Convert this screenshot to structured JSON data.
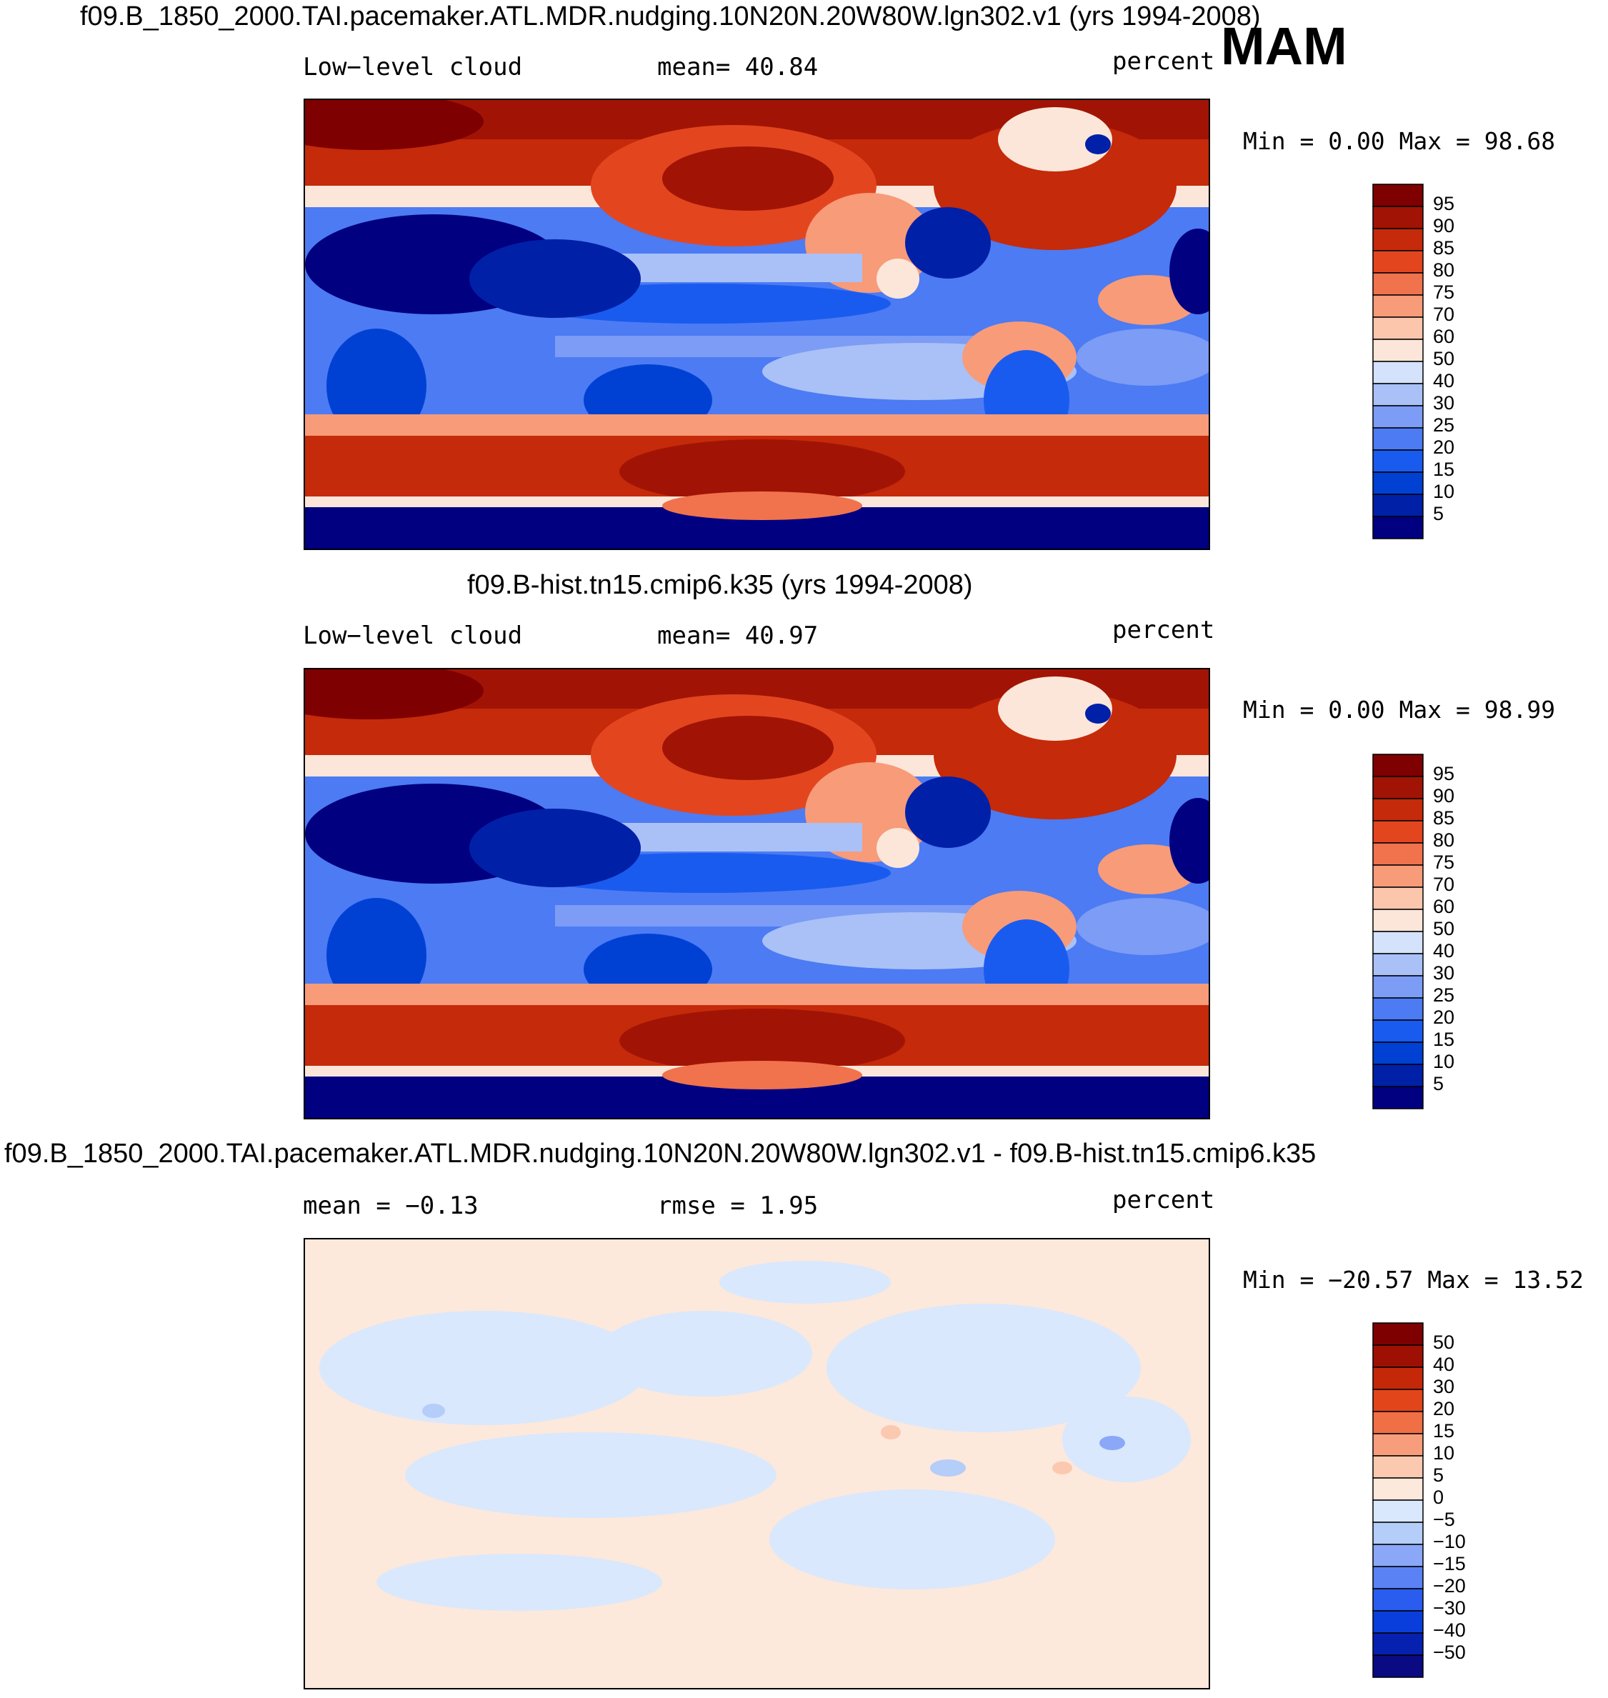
{
  "season": "MAM",
  "colors": {
    "abs": [
      "#000080",
      "#0020a8",
      "#0041d4",
      "#1a5bef",
      "#4c7bf3",
      "#7c9cf5",
      "#a9c1f7",
      "#d4e3fb",
      "#fbe6d9",
      "#fbc6ac",
      "#f89b78",
      "#f0734d",
      "#e3461f",
      "#c52a0a",
      "#a11405",
      "#7f0000"
    ],
    "diff": [
      "#0a0a82",
      "#0620b0",
      "#0a3edc",
      "#2a5cf0",
      "#5a82f4",
      "#8aa8f7",
      "#b4cdf9",
      "#d9e8fc",
      "#fde8dc",
      "#fbc9b0",
      "#f89d7c",
      "#f06f45",
      "#e3451a",
      "#c52808",
      "#9f1004",
      "#7f0000"
    ]
  },
  "panels": [
    {
      "title": "f09.B_1850_2000.TAI.pacemaker.ATL.MDR.nudging.10N20N.20W80W.lgn302.v1 (yrs 1994-2008)",
      "left_label": "Low−level cloud",
      "center_label": "mean=   40.84",
      "right_label": "percent",
      "minmax": "Min =     0.00 Max =   98.68",
      "colorbar_ticks": [
        "95",
        "90",
        "85",
        "80",
        "75",
        "70",
        "60",
        "50",
        "40",
        "30",
        "25",
        "20",
        "15",
        "10",
        "5"
      ]
    },
    {
      "title": "f09.B-hist.tn15.cmip6.k35 (yrs 1994-2008)",
      "left_label": "Low−level cloud",
      "center_label": "mean=   40.97",
      "right_label": "percent",
      "minmax": "Min =     0.00 Max =   98.99",
      "colorbar_ticks": [
        "95",
        "90",
        "85",
        "80",
        "75",
        "70",
        "60",
        "50",
        "40",
        "30",
        "25",
        "20",
        "15",
        "10",
        "5"
      ]
    },
    {
      "title": "f09.B_1850_2000.TAI.pacemaker.ATL.MDR.nudging.10N20N.20W80W.lgn302.v1 - f09.B-hist.tn15.cmip6.k35",
      "left_label": "mean =   −0.13",
      "center_label": "rmse =     1.95",
      "right_label": "percent",
      "minmax": "Min = −20.57  Max =   13.52",
      "colorbar_ticks": [
        "50",
        "40",
        "30",
        "20",
        "15",
        "10",
        "5",
        "0",
        "−5",
        "−10",
        "−15",
        "−20",
        "−30",
        "−40",
        "−50"
      ]
    }
  ],
  "chart_data": [
    {
      "type": "heatmap",
      "title": "f09.B_1850_2000.TAI.pacemaker.ATL.MDR.nudging.10N20N.20W80W.lgn302.v1 (yrs 1994-2008)",
      "variable": "Low-level cloud",
      "units": "percent",
      "season": "MAM",
      "mean": 40.84,
      "min": 0.0,
      "max": 98.68,
      "levels": [
        5,
        10,
        15,
        20,
        25,
        30,
        40,
        50,
        60,
        70,
        75,
        80,
        85,
        90,
        95
      ]
    },
    {
      "type": "heatmap",
      "title": "f09.B-hist.tn15.cmip6.k35 (yrs 1994-2008)",
      "variable": "Low-level cloud",
      "units": "percent",
      "season": "MAM",
      "mean": 40.97,
      "min": 0.0,
      "max": 98.99,
      "levels": [
        5,
        10,
        15,
        20,
        25,
        30,
        40,
        50,
        60,
        70,
        75,
        80,
        85,
        90,
        95
      ]
    },
    {
      "type": "heatmap",
      "title": "f09.B_1850_2000.TAI.pacemaker.ATL.MDR.nudging.10N20N.20W80W.lgn302.v1 - f09.B-hist.tn15.cmip6.k35",
      "units": "percent",
      "season": "MAM",
      "mean": -0.13,
      "rmse": 1.95,
      "min": -20.57,
      "max": 13.52,
      "levels": [
        -50,
        -40,
        -30,
        -20,
        -15,
        -10,
        -5,
        0,
        5,
        10,
        15,
        20,
        30,
        40,
        50
      ]
    }
  ]
}
